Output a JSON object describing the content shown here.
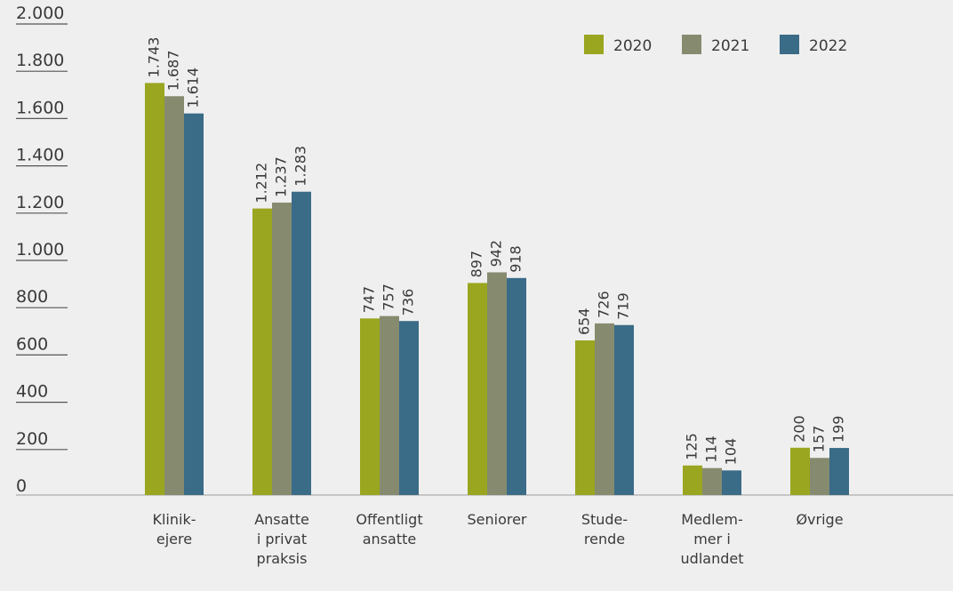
{
  "chart_data": {
    "type": "bar",
    "categories": [
      [
        "Klinik-",
        "ejere"
      ],
      [
        "Ansatte",
        "i privat",
        "praksis"
      ],
      [
        "Offentligt",
        "ansatte"
      ],
      [
        "Seniorer"
      ],
      [
        "Stude-",
        "rende"
      ],
      [
        "Medlem-",
        "mer i",
        "udlandet"
      ],
      [
        "Øvrige"
      ]
    ],
    "series": [
      {
        "name": "2020",
        "color": "#9aa61f",
        "values": [
          1743,
          1212,
          747,
          897,
          654,
          125,
          200
        ],
        "labels": [
          "1.743",
          "1.212",
          "747",
          "897",
          "654",
          "125",
          "200"
        ]
      },
      {
        "name": "2021",
        "color": "#868b70",
        "values": [
          1687,
          1237,
          757,
          942,
          726,
          114,
          157
        ],
        "labels": [
          "1.687",
          "1.237",
          "757",
          "942",
          "726",
          "114",
          "157"
        ]
      },
      {
        "name": "2022",
        "color": "#3a6b87",
        "values": [
          1614,
          1283,
          736,
          918,
          719,
          104,
          199
        ],
        "labels": [
          "1.614",
          "1.283",
          "736",
          "918",
          "719",
          "104",
          "199"
        ]
      }
    ],
    "ylim": [
      0,
      2000
    ],
    "yticks": [
      0,
      200,
      400,
      600,
      800,
      1000,
      1200,
      1400,
      1600,
      1800,
      2000
    ],
    "ytick_labels": [
      "0",
      "200",
      "400",
      "600",
      "800",
      "1.000",
      "1.200",
      "1.400",
      "1.600",
      "1.800",
      "2.000"
    ],
    "grid": false,
    "legend_position": "top-right"
  }
}
